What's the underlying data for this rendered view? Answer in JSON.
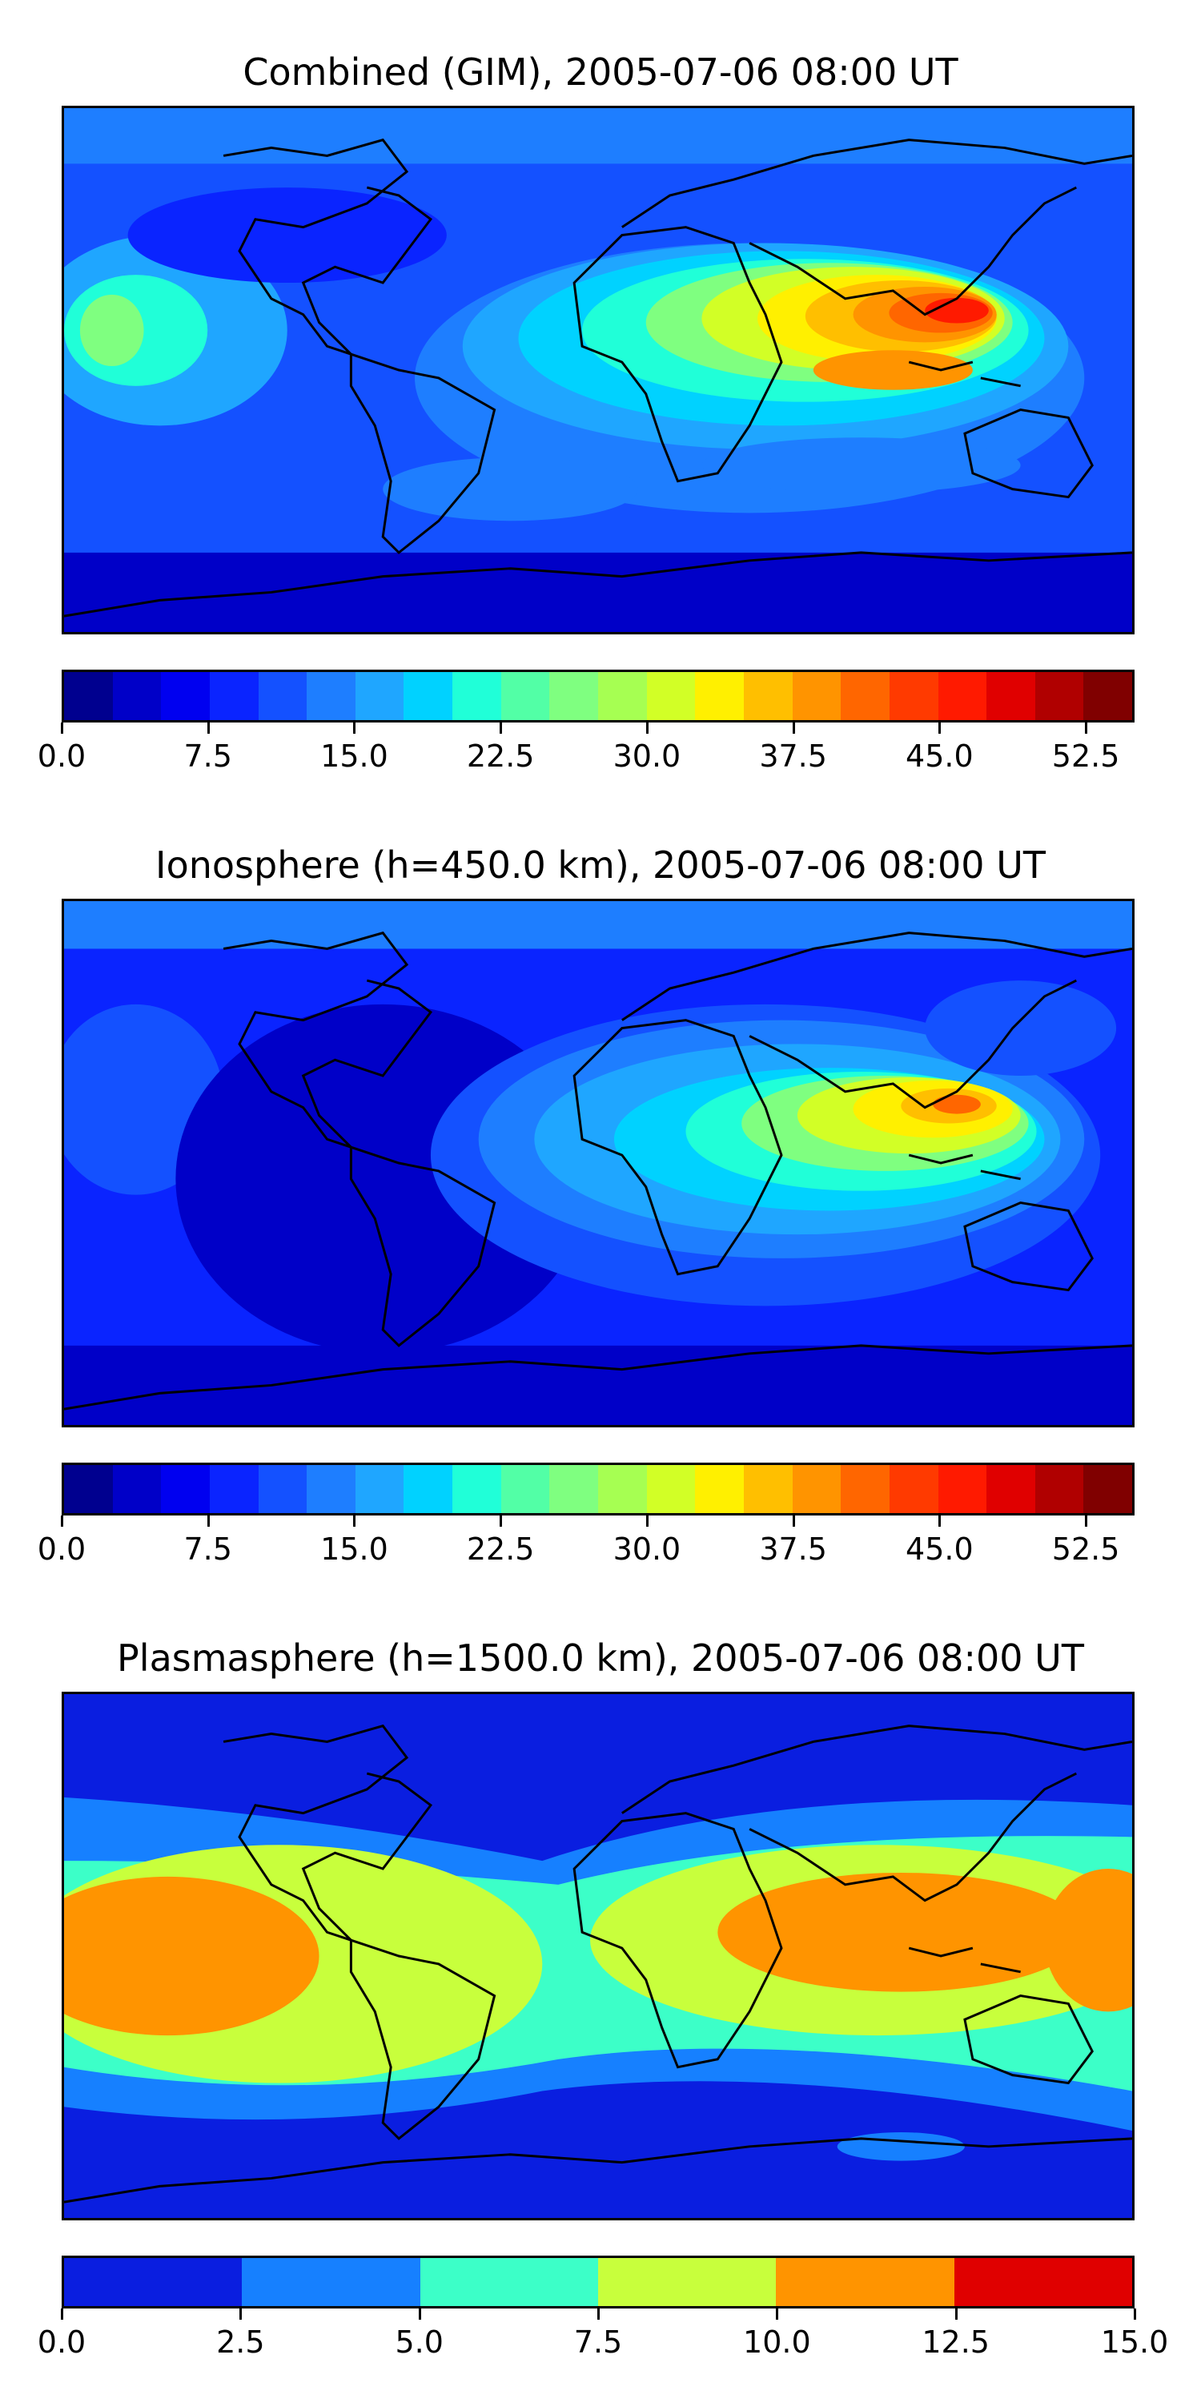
{
  "panels": [
    {
      "title": "Combined (GIM), 2005-07-06 08:00 UT",
      "colorbar": {
        "colors": [
          "#00008f",
          "#0000c8",
          "#0000f0",
          "#0a24ff",
          "#1451ff",
          "#1e7eff",
          "#1fa6ff",
          "#00d2ff",
          "#20ffd8",
          "#52ffa6",
          "#7fff80",
          "#a6ff52",
          "#d2ff26",
          "#fff000",
          "#ffbf00",
          "#ff9400",
          "#ff6600",
          "#ff3a00",
          "#ff1a00",
          "#e00000",
          "#b00000",
          "#800000"
        ],
        "ticks": [
          "0.0",
          "7.5",
          "15.0",
          "22.5",
          "30.0",
          "37.5",
          "45.0",
          "52.5"
        ],
        "tick_values": [
          0,
          7.5,
          15,
          22.5,
          30,
          37.5,
          45,
          52.5
        ],
        "range": [
          0,
          55
        ]
      }
    },
    {
      "title": "Ionosphere  (h=450.0 km), 2005-07-06 08:00 UT",
      "colorbar": {
        "colors": [
          "#00008f",
          "#0000c8",
          "#0000f0",
          "#0a24ff",
          "#1451ff",
          "#1e7eff",
          "#1fa6ff",
          "#00d2ff",
          "#20ffd8",
          "#52ffa6",
          "#7fff80",
          "#a6ff52",
          "#d2ff26",
          "#fff000",
          "#ffbf00",
          "#ff9400",
          "#ff6600",
          "#ff3a00",
          "#ff1a00",
          "#e00000",
          "#b00000",
          "#800000"
        ],
        "ticks": [
          "0.0",
          "7.5",
          "15.0",
          "22.5",
          "30.0",
          "37.5",
          "45.0",
          "52.5"
        ],
        "tick_values": [
          0,
          7.5,
          15,
          22.5,
          30,
          37.5,
          45,
          52.5
        ],
        "range": [
          0,
          55
        ]
      }
    },
    {
      "title": "Plasmasphere (h=1500.0 km), 2005-07-06 08:00 UT",
      "colorbar": {
        "colors": [
          "#0a1ee0",
          "#1680ff",
          "#3cffc8",
          "#c8ff3c",
          "#ff9400",
          "#e00000"
        ],
        "ticks": [
          "0.0",
          "2.5",
          "5.0",
          "7.5",
          "10.0",
          "12.5",
          "15.0"
        ],
        "tick_values": [
          0,
          2.5,
          5,
          7.5,
          10,
          12.5,
          15
        ],
        "range": [
          0,
          15
        ]
      }
    }
  ]
}
